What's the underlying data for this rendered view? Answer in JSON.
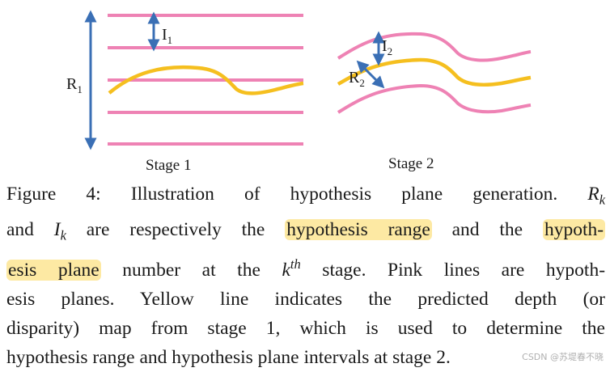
{
  "figure": {
    "stage1_label": "Stage 1",
    "stage2_label": "Stage 2",
    "label_R1_main": "R",
    "label_R1_sub": "1",
    "label_I1_main": "I",
    "label_I1_sub": "1",
    "label_I2_main": "I",
    "label_I2_sub": "2",
    "label_R2_main": "R",
    "label_R2_sub": "2",
    "colors": {
      "hypothesis_plane": "#ee82b4",
      "depth_map": "#f5bf1f",
      "arrow": "#3a6fb5"
    }
  },
  "caption": {
    "l1_text": "Figure 4: Illustration of hypothesis plane generation.",
    "l1_R": "R",
    "l1_k": "k",
    "l2_and": "and",
    "l2_I": "I",
    "l2_k": "k",
    "l2_mid": "are respectively the",
    "l2_hl1": "hypothesis range",
    "l2_andthe": "and the",
    "l2_hl2": "hypoth-",
    "l3_hl": "esis plane",
    "l3_number": "number at the",
    "l3_k": "k",
    "l3_th": "th",
    "l3_rest": "stage. Pink lines are hypoth-",
    "l4": "esis planes. Yellow line indicates the predicted depth (or",
    "l5": "disparity) map from stage 1, which is used to determine the",
    "l6": "hypothesis range and hypothesis plane intervals at stage 2."
  },
  "watermark": "CSDN @苏堤春不晓"
}
